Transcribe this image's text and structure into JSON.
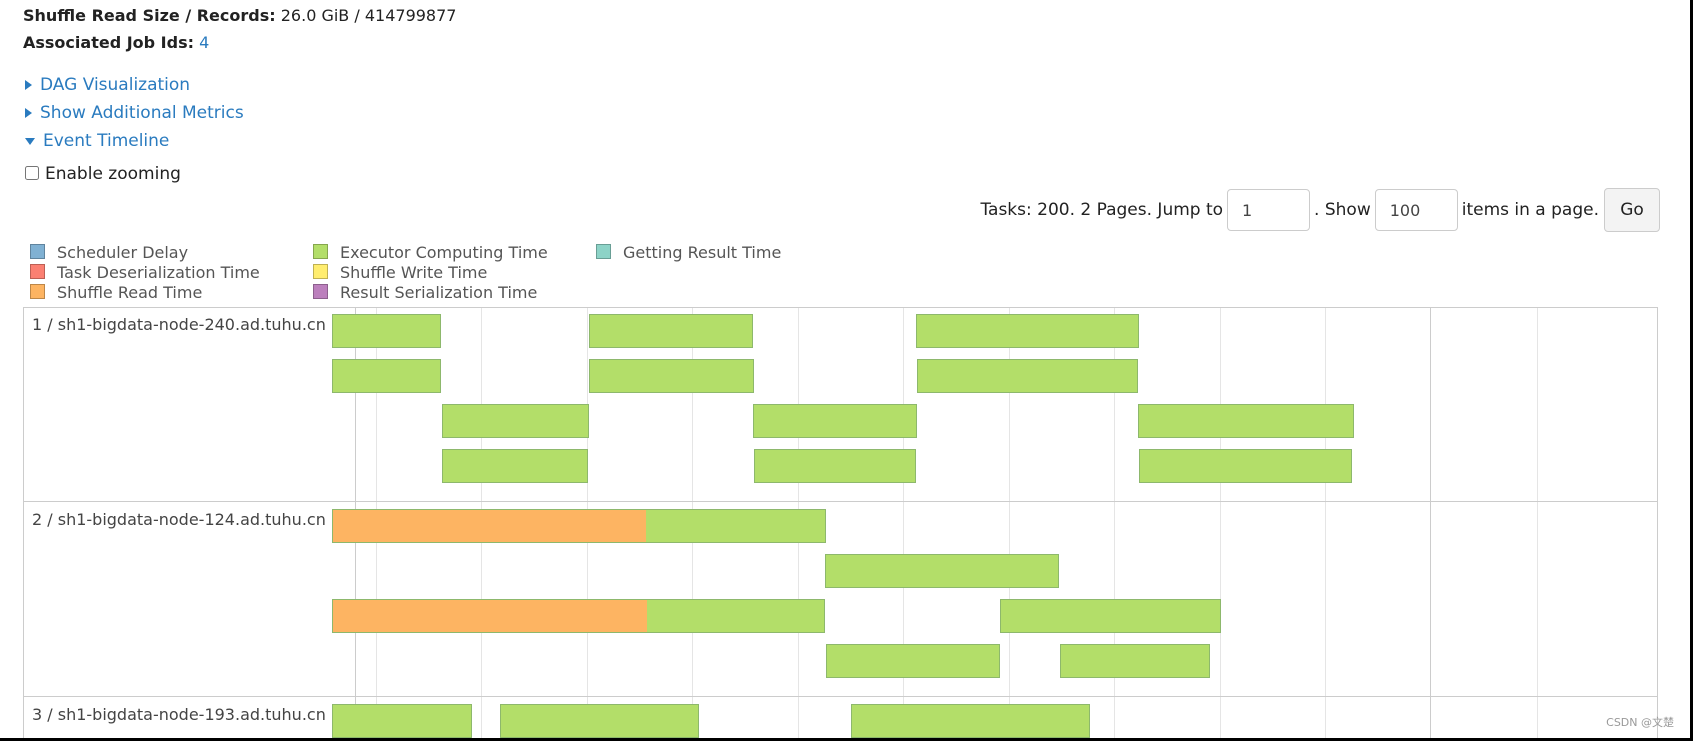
{
  "summary": {
    "shuffle_read_label": "Shuffle Read Size / Records:",
    "shuffle_read_value": "26.0 GiB / 414799877",
    "job_ids_label": "Associated Job Ids:",
    "job_ids_value": "4"
  },
  "expanders": {
    "dag": "DAG Visualization",
    "metrics": "Show Additional Metrics",
    "timeline": "Event Timeline"
  },
  "zoom": {
    "label": "Enable zooming",
    "checked": false
  },
  "pager": {
    "tasks_text": "Tasks: 200. 2 Pages. Jump to",
    "page_value": "1",
    "show_text": ". Show",
    "size_value": "100",
    "items_text": "items in a page.",
    "go_label": "Go"
  },
  "legend": [
    {
      "label": "Scheduler Delay",
      "color": "#80b1d3"
    },
    {
      "label": "Task Deserialization Time",
      "color": "#fb8072"
    },
    {
      "label": "Shuffle Read Time",
      "color": "#fdb462"
    },
    {
      "label": "Executor Computing Time",
      "color": "#b3de69"
    },
    {
      "label": "Shuffle Write Time",
      "color": "#ffed6f"
    },
    {
      "label": "Result Serialization Time",
      "color": "#bc80bd"
    },
    {
      "label": "Getting Result Time",
      "color": "#8dd3c7"
    }
  ],
  "groups": [
    {
      "label": "1 / sh1-bigdata-node-240.ad.tuhu.cn"
    },
    {
      "label": "2 / sh1-bigdata-node-124.ad.tuhu.cn"
    },
    {
      "label": "3 / sh1-bigdata-node-193.ad.tuhu.cn"
    }
  ],
  "tasks": [
    {
      "group": 0,
      "lane": 0,
      "start": 0,
      "end": 109,
      "segments": [
        {
          "phase": "Executor Computing Time",
          "fraction": 1
        }
      ]
    },
    {
      "group": 0,
      "lane": 0,
      "start": 257,
      "end": 421,
      "segments": [
        {
          "phase": "Executor Computing Time",
          "fraction": 1
        }
      ]
    },
    {
      "group": 0,
      "lane": 0,
      "start": 584,
      "end": 807,
      "segments": [
        {
          "phase": "Executor Computing Time",
          "fraction": 1
        }
      ]
    },
    {
      "group": 0,
      "lane": 1,
      "start": 0,
      "end": 109,
      "segments": [
        {
          "phase": "Executor Computing Time",
          "fraction": 1
        }
      ]
    },
    {
      "group": 0,
      "lane": 1,
      "start": 257,
      "end": 422,
      "segments": [
        {
          "phase": "Executor Computing Time",
          "fraction": 1
        }
      ]
    },
    {
      "group": 0,
      "lane": 1,
      "start": 585,
      "end": 806,
      "segments": [
        {
          "phase": "Executor Computing Time",
          "fraction": 1
        }
      ]
    },
    {
      "group": 0,
      "lane": 2,
      "start": 110,
      "end": 257,
      "segments": [
        {
          "phase": "Executor Computing Time",
          "fraction": 1
        }
      ]
    },
    {
      "group": 0,
      "lane": 2,
      "start": 421,
      "end": 585,
      "segments": [
        {
          "phase": "Executor Computing Time",
          "fraction": 1
        }
      ]
    },
    {
      "group": 0,
      "lane": 2,
      "start": 806,
      "end": 1022,
      "segments": [
        {
          "phase": "Executor Computing Time",
          "fraction": 1
        }
      ]
    },
    {
      "group": 0,
      "lane": 3,
      "start": 110,
      "end": 256,
      "segments": [
        {
          "phase": "Executor Computing Time",
          "fraction": 1
        }
      ]
    },
    {
      "group": 0,
      "lane": 3,
      "start": 422,
      "end": 584,
      "segments": [
        {
          "phase": "Executor Computing Time",
          "fraction": 1
        }
      ]
    },
    {
      "group": 0,
      "lane": 3,
      "start": 807,
      "end": 1020,
      "segments": [
        {
          "phase": "Executor Computing Time",
          "fraction": 1
        }
      ]
    },
    {
      "group": 1,
      "lane": 0,
      "start": 0,
      "end": 494,
      "segments": [
        {
          "phase": "Shuffle Read Time",
          "fraction": 0.636
        },
        {
          "phase": "Executor Computing Time",
          "fraction": 0.364
        }
      ]
    },
    {
      "group": 1,
      "lane": 1,
      "start": 493,
      "end": 727,
      "segments": [
        {
          "phase": "Executor Computing Time",
          "fraction": 1
        }
      ]
    },
    {
      "group": 1,
      "lane": 2,
      "start": 0,
      "end": 493,
      "segments": [
        {
          "phase": "Shuffle Read Time",
          "fraction": 0.639
        },
        {
          "phase": "Executor Computing Time",
          "fraction": 0.361
        }
      ]
    },
    {
      "group": 1,
      "lane": 2,
      "start": 668,
      "end": 889,
      "segments": [
        {
          "phase": "Executor Computing Time",
          "fraction": 1
        }
      ]
    },
    {
      "group": 1,
      "lane": 3,
      "start": 494,
      "end": 668,
      "segments": [
        {
          "phase": "Executor Computing Time",
          "fraction": 1
        }
      ]
    },
    {
      "group": 1,
      "lane": 3,
      "start": 728,
      "end": 878,
      "segments": [
        {
          "phase": "Executor Computing Time",
          "fraction": 1
        }
      ]
    },
    {
      "group": 2,
      "lane": 0,
      "start": 0,
      "end": 140,
      "segments": [
        {
          "phase": "Executor Computing Time",
          "fraction": 1
        }
      ]
    },
    {
      "group": 2,
      "lane": 0,
      "start": 168,
      "end": 367,
      "segments": [
        {
          "phase": "Executor Computing Time",
          "fraction": 1
        }
      ]
    },
    {
      "group": 2,
      "lane": 0,
      "start": 519,
      "end": 758,
      "segments": [
        {
          "phase": "Executor Computing Time",
          "fraction": 1
        }
      ]
    }
  ],
  "watermark": "CSDN @文楚"
}
